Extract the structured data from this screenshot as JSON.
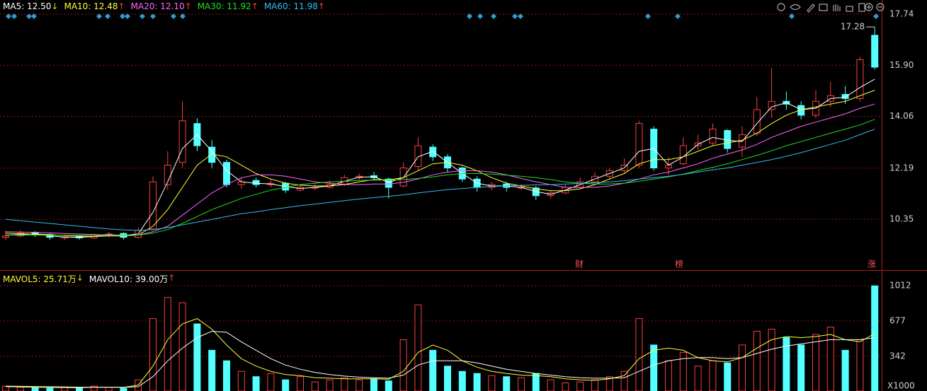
{
  "chart_data": [
    {
      "type": "candlestick",
      "open": [
        9.7,
        9.75,
        9.88,
        9.8,
        9.68,
        9.74,
        9.68,
        9.76,
        9.84,
        9.7,
        10.0,
        11.6,
        12.4,
        13.8,
        12.95,
        12.4,
        11.6,
        11.75,
        11.6,
        11.65,
        11.4,
        11.48,
        11.5,
        11.62,
        11.85,
        11.92,
        11.8,
        11.55,
        12.25,
        12.95,
        12.6,
        12.2,
        11.8,
        11.5,
        11.62,
        11.5,
        11.48,
        11.2,
        11.3,
        11.5,
        11.7,
        11.9,
        12.1,
        12.3,
        13.6,
        12.2,
        12.35,
        13.0,
        13.1,
        13.55,
        12.95,
        13.45,
        14.3,
        14.6,
        14.45,
        14.1,
        14.6,
        14.85,
        14.7,
        16.98
      ],
      "close": [
        9.75,
        9.85,
        9.8,
        9.7,
        9.72,
        9.68,
        9.78,
        9.82,
        9.7,
        9.95,
        11.7,
        12.3,
        13.9,
        13.0,
        12.4,
        11.6,
        11.7,
        11.6,
        11.65,
        11.4,
        11.5,
        11.5,
        11.6,
        11.85,
        11.9,
        11.85,
        11.5,
        12.2,
        13.0,
        12.6,
        12.2,
        11.8,
        11.5,
        11.6,
        11.5,
        11.5,
        11.2,
        11.3,
        11.5,
        11.7,
        11.9,
        12.1,
        12.3,
        13.8,
        12.2,
        12.3,
        13.0,
        13.1,
        13.6,
        12.9,
        13.4,
        14.3,
        14.6,
        14.5,
        14.1,
        14.6,
        14.8,
        14.7,
        16.1,
        15.83
      ],
      "low": [
        9.6,
        9.7,
        9.72,
        9.62,
        9.6,
        9.62,
        9.64,
        9.7,
        9.62,
        9.66,
        9.95,
        11.4,
        12.2,
        12.8,
        12.2,
        11.5,
        11.45,
        11.5,
        11.5,
        11.3,
        11.35,
        11.4,
        11.45,
        11.55,
        11.75,
        11.75,
        11.1,
        11.5,
        12.1,
        12.45,
        12.05,
        11.7,
        11.35,
        11.4,
        11.35,
        11.4,
        11.05,
        11.1,
        11.25,
        11.45,
        11.65,
        11.8,
        12.0,
        12.2,
        12.1,
        11.95,
        12.3,
        12.85,
        13.0,
        12.75,
        12.6,
        13.35,
        14.0,
        14.3,
        13.95,
        14.0,
        14.4,
        14.5,
        14.6,
        15.75
      ],
      "high": [
        9.95,
        9.95,
        9.92,
        9.84,
        9.8,
        9.78,
        9.84,
        9.9,
        9.88,
        10.05,
        11.9,
        12.8,
        14.6,
        14.0,
        13.2,
        12.5,
        11.85,
        11.85,
        11.8,
        11.7,
        11.6,
        11.65,
        11.75,
        11.95,
        12.0,
        12.05,
        11.85,
        12.4,
        13.3,
        13.05,
        12.7,
        12.25,
        11.9,
        11.7,
        11.7,
        11.62,
        11.55,
        11.4,
        11.6,
        11.85,
        12.05,
        12.2,
        12.55,
        13.9,
        13.7,
        12.6,
        13.3,
        13.4,
        13.8,
        13.6,
        13.7,
        14.75,
        15.8,
        14.95,
        14.6,
        15.0,
        15.3,
        15.15,
        16.2,
        17.28
      ],
      "up_color": "#ff3c3c",
      "down_color": "#54ffff",
      "ylim": [
        8.52,
        18.25
      ],
      "yticks": [
        17.74,
        {
          "value": 15.9,
          "label": "15.90"
        },
        14.06,
        12.19,
        10.35
      ],
      "grid": true,
      "high_label": 17.28,
      "events": [
        "财",
        "榜",
        "涨"
      ],
      "lines": [
        {
          "text": "MA5: 12.50",
          "arrow": "↓",
          "arrow_color": "#c8e000",
          "color": "#ffffff",
          "values": [
            9.78,
            9.8,
            9.83,
            9.75,
            9.71,
            9.7,
            9.73,
            9.8,
            9.76,
            9.83,
            10.6,
            11.7,
            12.9,
            13.4,
            12.8,
            12.1,
            11.7,
            11.65,
            11.62,
            11.53,
            11.46,
            11.5,
            11.55,
            11.72,
            11.87,
            11.88,
            11.68,
            11.85,
            12.6,
            12.8,
            12.4,
            12.0,
            11.65,
            11.55,
            11.55,
            11.5,
            11.35,
            11.25,
            11.4,
            11.6,
            11.8,
            12.0,
            12.2,
            12.8,
            12.9,
            12.3,
            12.6,
            13.05,
            13.3,
            13.2,
            13.15,
            13.8,
            14.4,
            14.55,
            14.3,
            14.35,
            14.7,
            14.75,
            15.1,
            15.4
          ]
        },
        {
          "text": "MA10: 12.48",
          "arrow": "↑",
          "arrow_color": "#ff3c3c",
          "color": "#ffff33",
          "values": [
            9.85,
            9.83,
            9.82,
            9.8,
            9.76,
            9.74,
            9.73,
            9.75,
            9.75,
            9.78,
            10.1,
            10.7,
            11.5,
            12.3,
            12.7,
            12.6,
            12.3,
            12.0,
            11.8,
            11.65,
            11.58,
            11.55,
            11.55,
            11.6,
            11.7,
            11.78,
            11.77,
            11.85,
            12.1,
            12.35,
            12.4,
            12.3,
            12.1,
            11.85,
            11.65,
            11.55,
            11.45,
            11.38,
            11.38,
            11.45,
            11.6,
            11.8,
            12.0,
            12.35,
            12.5,
            12.5,
            12.6,
            12.8,
            13.0,
            13.1,
            13.2,
            13.45,
            13.8,
            14.1,
            14.3,
            14.4,
            14.5,
            14.6,
            14.8,
            15.0
          ]
        },
        {
          "text": "MA20: 12.10",
          "arrow": "↑",
          "arrow_color": "#ff3c3c",
          "color": "#ff66ff",
          "values": [
            9.9,
            9.89,
            9.88,
            9.86,
            9.84,
            9.82,
            9.8,
            9.79,
            9.78,
            9.78,
            9.9,
            10.1,
            10.5,
            10.9,
            11.3,
            11.6,
            11.85,
            11.95,
            11.95,
            11.9,
            11.8,
            11.7,
            11.65,
            11.6,
            11.6,
            11.62,
            11.62,
            11.68,
            11.8,
            11.95,
            12.05,
            12.1,
            12.1,
            12.05,
            11.95,
            11.82,
            11.7,
            11.6,
            11.5,
            11.5,
            11.5,
            11.55,
            11.65,
            11.8,
            11.95,
            12.05,
            12.2,
            12.35,
            12.55,
            12.7,
            12.85,
            13.05,
            13.3,
            13.5,
            13.7,
            13.85,
            14.0,
            14.15,
            14.35,
            14.5
          ]
        },
        {
          "text": "MA30: 11.92",
          "arrow": "↑",
          "arrow_color": "#ff3c3c",
          "color": "#22dd22",
          "values": [
            9.78,
            9.78,
            9.78,
            9.78,
            9.77,
            9.77,
            9.77,
            9.77,
            9.77,
            9.78,
            9.85,
            9.98,
            10.2,
            10.45,
            10.7,
            10.9,
            11.1,
            11.25,
            11.4,
            11.5,
            11.6,
            11.65,
            11.7,
            11.72,
            11.75,
            11.76,
            11.76,
            11.78,
            11.82,
            11.88,
            11.95,
            12.0,
            12.0,
            11.98,
            11.94,
            11.9,
            11.85,
            11.78,
            11.7,
            11.65,
            11.62,
            11.62,
            11.65,
            11.72,
            11.8,
            11.88,
            11.98,
            12.1,
            12.22,
            12.35,
            12.5,
            12.65,
            12.82,
            13.0,
            13.15,
            13.3,
            13.45,
            13.6,
            13.75,
            13.95
          ]
        },
        {
          "text": "MA60: 11.98",
          "arrow": "↑",
          "arrow_color": "#ff3c3c",
          "color": "#33bbee",
          "values": [
            10.35,
            10.3,
            10.25,
            10.2,
            10.15,
            10.1,
            10.05,
            10.0,
            9.97,
            9.95,
            9.98,
            10.05,
            10.15,
            10.25,
            10.35,
            10.45,
            10.55,
            10.62,
            10.7,
            10.77,
            10.84,
            10.9,
            10.96,
            11.02,
            11.08,
            11.13,
            11.18,
            11.23,
            11.3,
            11.36,
            11.42,
            11.46,
            11.5,
            11.53,
            11.55,
            11.57,
            11.59,
            11.6,
            11.62,
            11.64,
            11.67,
            11.7,
            11.74,
            11.8,
            11.85,
            11.9,
            11.97,
            12.05,
            12.13,
            12.2,
            12.3,
            12.4,
            12.5,
            12.62,
            12.75,
            12.9,
            13.05,
            13.2,
            13.4,
            13.6
          ]
        }
      ]
    },
    {
      "type": "volume",
      "values": [
        60,
        50,
        45,
        40,
        50,
        45,
        60,
        50,
        40,
        120,
        700,
        900,
        850,
        650,
        400,
        300,
        200,
        150,
        180,
        120,
        150,
        100,
        120,
        140,
        120,
        130,
        110,
        500,
        830,
        400,
        250,
        200,
        180,
        160,
        150,
        140,
        180,
        120,
        90,
        100,
        120,
        150,
        200,
        700,
        450,
        300,
        380,
        250,
        300,
        280,
        450,
        580,
        600,
        520,
        450,
        550,
        620,
        400,
        500,
        1010
      ],
      "ylim": [
        14,
        1146
      ],
      "yticks": [
        1012,
        677,
        342
      ],
      "unit_label": "X1000",
      "grid": true,
      "lines": [
        {
          "text": "MAVOL5: 25.71万",
          "arrow": "↓",
          "arrow_color": "#c8e000",
          "color": "#ffff33",
          "values": [
            55,
            52,
            50,
            48,
            47,
            46,
            50,
            50,
            48,
            70,
            250,
            500,
            650,
            700,
            600,
            450,
            320,
            250,
            200,
            170,
            160,
            140,
            135,
            130,
            130,
            130,
            125,
            200,
            380,
            450,
            400,
            300,
            240,
            200,
            180,
            165,
            160,
            150,
            130,
            120,
            115,
            130,
            160,
            320,
            400,
            420,
            400,
            330,
            300,
            290,
            330,
            420,
            500,
            530,
            520,
            530,
            550,
            500,
            480,
            560
          ]
        },
        {
          "text": "MAVOL10: 39.00万",
          "arrow": "↑",
          "arrow_color": "#ff3c3c",
          "color": "#ffffff",
          "values": [
            60,
            58,
            56,
            54,
            52,
            50,
            50,
            50,
            49,
            55,
            150,
            300,
            420,
            520,
            580,
            570,
            480,
            400,
            320,
            260,
            220,
            190,
            170,
            155,
            145,
            140,
            135,
            165,
            260,
            300,
            300,
            300,
            280,
            250,
            220,
            200,
            180,
            165,
            150,
            140,
            135,
            135,
            140,
            200,
            260,
            300,
            320,
            330,
            330,
            320,
            330,
            370,
            410,
            440,
            460,
            480,
            500,
            500,
            500,
            520
          ]
        }
      ]
    }
  ]
}
